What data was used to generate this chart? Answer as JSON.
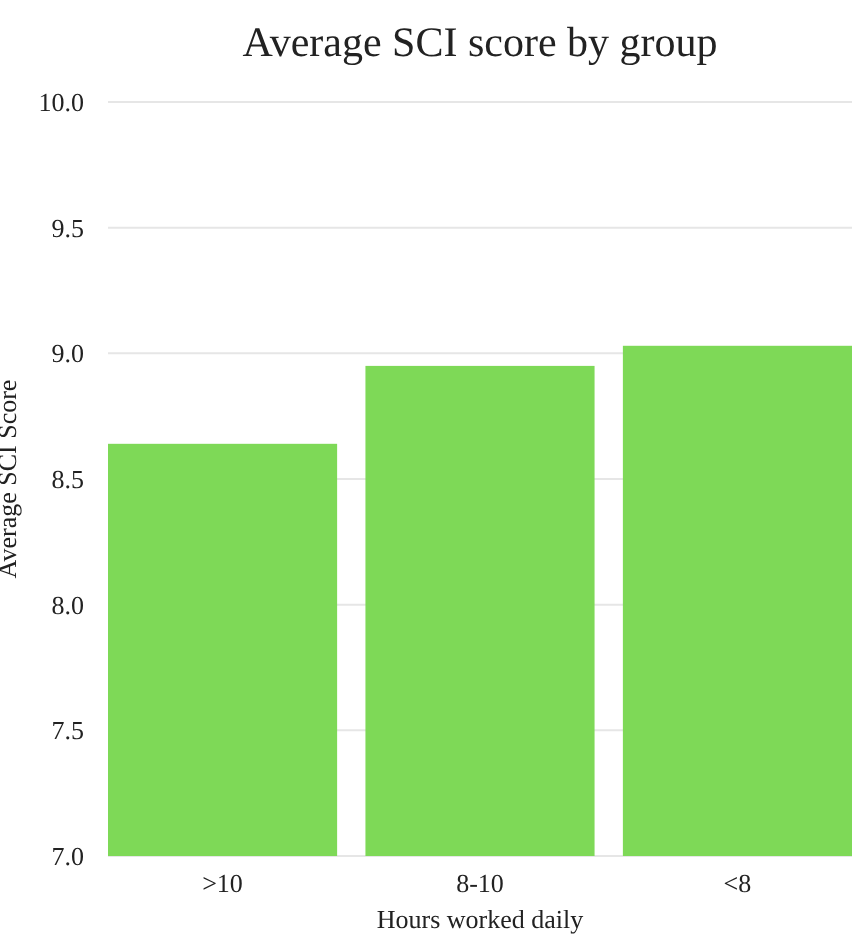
{
  "chart_data": {
    "type": "bar",
    "title": "Average SCI score by group",
    "xlabel": "Hours worked daily",
    "ylabel": "Average SCI Score",
    "categories": [
      ">10",
      "8-10",
      "<8"
    ],
    "values": [
      8.64,
      8.95,
      9.03
    ],
    "color": "#7ed957",
    "ylim": [
      7,
      10
    ],
    "yticks": [
      {
        "value": 7,
        "label": "7.0"
      },
      {
        "value": 7.5,
        "label": "7.5"
      },
      {
        "value": 8,
        "label": "8.0"
      },
      {
        "value": 8.5,
        "label": "8.5"
      },
      {
        "value": 9,
        "label": "9.0"
      },
      {
        "value": 9.5,
        "label": "9.5"
      },
      {
        "value": 10,
        "label": "10.0"
      }
    ],
    "grid": "y"
  }
}
